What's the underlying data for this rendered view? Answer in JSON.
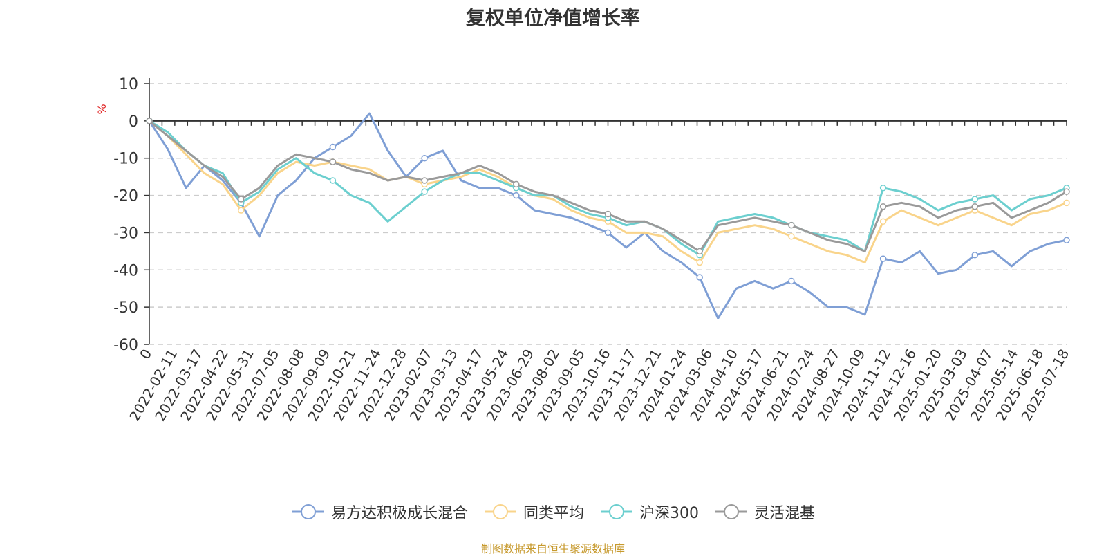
{
  "chart_data": {
    "type": "line",
    "title": "复权单位净值增长率",
    "ylabel": "%",
    "ylim": [
      -60,
      10
    ],
    "yticks": [
      10,
      0,
      -10,
      -20,
      -30,
      -40,
      -50,
      -60
    ],
    "xlabels": [
      "0",
      "2022-02-11",
      "2022-03-17",
      "2022-04-22",
      "2022-05-31",
      "2022-07-05",
      "2022-08-08",
      "2022-09-09",
      "2022-10-21",
      "2022-11-24",
      "2022-12-28",
      "2023-02-07",
      "2023-03-13",
      "2023-04-17",
      "2023-05-24",
      "2023-06-29",
      "2023-08-02",
      "2023-09-05",
      "2023-10-16",
      "2023-11-17",
      "2023-12-21",
      "2024-01-24",
      "2024-03-06",
      "2024-04-10",
      "2024-05-17",
      "2024-06-21",
      "2024-07-24",
      "2024-08-27",
      "2024-10-09",
      "2024-11-12",
      "2024-12-16",
      "2025-01-20",
      "2025-03-03",
      "2025-04-07",
      "2025-05-14",
      "2025-06-18",
      "2025-07-18"
    ],
    "grid": "dashed-horizontal",
    "legend_position": "bottom",
    "series": [
      {
        "name": "易方达积极成长混合",
        "color": "#7f9fd5",
        "values": [
          0,
          -7.5,
          -18,
          -12,
          -16,
          -22,
          -31,
          -20,
          -16,
          -10,
          -7,
          -4,
          2,
          -8,
          -15,
          -10,
          -8,
          -16,
          -18,
          -18,
          -20,
          -24,
          -25,
          -26,
          -28,
          -30,
          -34,
          -30,
          -35,
          -38,
          -42,
          -53,
          -45,
          -43,
          -45,
          -43,
          -46,
          -50,
          -50,
          -52,
          -37,
          -38,
          -35,
          -41,
          -40,
          -36,
          -35,
          -39,
          -35,
          -33,
          -32
        ]
      },
      {
        "name": "同类平均",
        "color": "#f9d48b",
        "values": [
          0,
          -4,
          -9,
          -14,
          -17,
          -24,
          -20,
          -14,
          -11,
          -12,
          -11,
          -12,
          -13,
          -16,
          -15,
          -17,
          -16,
          -15,
          -13,
          -15,
          -18,
          -20,
          -21,
          -24,
          -26,
          -27,
          -30,
          -30,
          -31,
          -35,
          -38,
          -30,
          -29,
          -28,
          -29,
          -31,
          -33,
          -35,
          -36,
          -38,
          -27,
          -24,
          -26,
          -28,
          -26,
          -24,
          -26,
          -28,
          -25,
          -24,
          -22
        ]
      },
      {
        "name": "沪深300",
        "color": "#6ccfcf",
        "values": [
          0,
          -3,
          -8,
          -12,
          -14,
          -22,
          -19,
          -13,
          -10,
          -14,
          -16,
          -20,
          -22,
          -27,
          -23,
          -19,
          -16,
          -14,
          -14,
          -16,
          -18,
          -20,
          -20,
          -23,
          -25,
          -26,
          -28,
          -27,
          -29,
          -33,
          -36,
          -27,
          -26,
          -25,
          -26,
          -28,
          -30,
          -31,
          -32,
          -35,
          -18,
          -19,
          -21,
          -24,
          -22,
          -21,
          -20,
          -24,
          -21,
          -20,
          -18
        ]
      },
      {
        "name": "灵活混基",
        "color": "#9a9a9a",
        "values": [
          0,
          -4,
          -8,
          -12,
          -15,
          -21,
          -18,
          -12,
          -9,
          -10,
          -11,
          -13,
          -14,
          -16,
          -15,
          -16,
          -15,
          -14,
          -12,
          -14,
          -17,
          -19,
          -20,
          -22,
          -24,
          -25,
          -27,
          -27,
          -29,
          -32,
          -35,
          -28,
          -27,
          -26,
          -27,
          -28,
          -30,
          -32,
          -33,
          -35,
          -23,
          -22,
          -23,
          -26,
          -24,
          -23,
          -22,
          -26,
          -24,
          -22,
          -19
        ]
      }
    ]
  },
  "footer": {
    "source": "制图数据来自恒生聚源数据库"
  }
}
